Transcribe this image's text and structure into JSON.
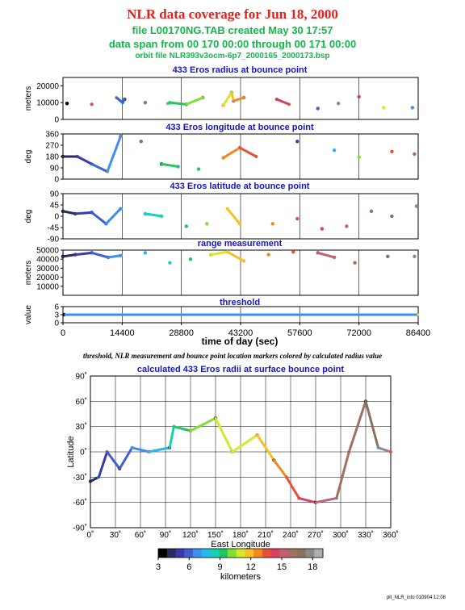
{
  "header": {
    "title": "NLR data coverage for Jun 18, 2000",
    "file_line": "file L00170NG.TAB created May 30 17:57",
    "span_line": "data span from 00 170 00:00 through 00 171 00:00",
    "orbit_line": "orbit file NLR393v3ocm-6p7_2000165_2000173.bsp"
  },
  "caption": "threshold, NLR measurement and bounce point location markers colored by calculated radius value",
  "footer": "plt_NLR_info 010904 12:08",
  "colors": {
    "panel_title": "#1616c8",
    "header_red": "#e8201b",
    "header_green": "#11b84a"
  },
  "chart_data": [
    {
      "type": "scatter",
      "title": "433 Eros radius at bounce point",
      "ylabel": "meters",
      "xlim": [
        0,
        86400
      ],
      "ylim": [
        0,
        25000
      ],
      "yticks": [
        "0",
        "10000",
        "20000"
      ],
      "series": [
        {
          "x": [
            1000,
            7000,
            13000,
            14500,
            15000,
            20000,
            25500,
            26000,
            30000,
            34000,
            39000,
            41000,
            41500,
            44000,
            52000,
            55000,
            62000,
            67000,
            72000,
            78000,
            85000
          ],
          "y": [
            9500,
            9000,
            13000,
            10000,
            12000,
            10000,
            9500,
            10000,
            9000,
            13000,
            8500,
            16000,
            11000,
            13000,
            12000,
            9000,
            6500,
            9500,
            13500,
            7000,
            7000
          ]
        }
      ]
    },
    {
      "type": "scatter",
      "title": "433 Eros longitude at bounce point",
      "ylabel": "deg",
      "xlim": [
        0,
        86400
      ],
      "ylim": [
        0,
        360
      ],
      "yticks": [
        "0",
        "90",
        "180",
        "270",
        "360"
      ],
      "series": [
        {
          "x": [
            0,
            3500,
            7000,
            10800,
            14000,
            19000,
            24000,
            28000,
            33000,
            39000,
            43000,
            47000,
            57000,
            66000,
            72000,
            80000,
            85500
          ],
          "y": [
            180,
            180,
            120,
            60,
            340,
            300,
            120,
            100,
            80,
            170,
            250,
            180,
            300,
            230,
            175,
            220,
            200
          ]
        }
      ]
    },
    {
      "type": "scatter",
      "title": "433 Eros latitude at bounce point",
      "ylabel": "deg",
      "xlim": [
        0,
        86400
      ],
      "ylim": [
        -90,
        90
      ],
      "yticks": [
        "-90",
        "-45",
        "0",
        "45",
        "90"
      ],
      "series": [
        {
          "x": [
            0,
            3000,
            7000,
            10500,
            14000,
            20000,
            24000,
            30000,
            35000,
            40000,
            43000,
            51000,
            57000,
            63000,
            69000,
            75000,
            80000,
            86000
          ],
          "y": [
            20,
            10,
            15,
            -30,
            30,
            10,
            0,
            -40,
            -30,
            30,
            -30,
            -30,
            -10,
            -50,
            -40,
            20,
            0,
            40
          ]
        }
      ]
    },
    {
      "type": "scatter",
      "title": "range measurement",
      "ylabel": "meters",
      "xlim": [
        0,
        86400
      ],
      "ylim": [
        0,
        50000
      ],
      "yticks": [
        "10000",
        "20000",
        "30000",
        "40000",
        "50000"
      ],
      "series": [
        {
          "x": [
            0,
            3000,
            7000,
            11000,
            14000,
            20000,
            26000,
            31000,
            36000,
            40000,
            44000,
            50000,
            56000,
            62000,
            66000,
            71000,
            79000,
            85500
          ],
          "y": [
            43000,
            45000,
            47000,
            42000,
            44000,
            47000,
            36000,
            40000,
            45000,
            48000,
            38000,
            45000,
            48000,
            47000,
            42000,
            36000,
            43000,
            43000
          ]
        }
      ]
    },
    {
      "type": "scatter",
      "title": "threshold",
      "ylabel": "value",
      "xlabel": "time of day (sec)",
      "xlim": [
        0,
        86400
      ],
      "ylim": [
        0,
        6
      ],
      "yticks": [
        "0",
        "3",
        "6"
      ],
      "xticks": [
        "0",
        "14400",
        "28800",
        "43200",
        "57600",
        "72000",
        "86400"
      ],
      "series": [
        {
          "x": [
            300,
            86100
          ],
          "y": [
            3,
            3
          ]
        }
      ]
    },
    {
      "type": "scatter",
      "title": "calculated 433 Eros radii at surface bounce point",
      "xlabel": "East Longitude",
      "ylabel": "Latitude",
      "xlim": [
        0,
        360
      ],
      "ylim": [
        -90,
        90
      ],
      "xticks": [
        "0˚",
        "30˚",
        "60˚",
        "90˚",
        "120˚",
        "150˚",
        "180˚",
        "210˚",
        "240˚",
        "270˚",
        "300˚",
        "330˚",
        "360˚"
      ],
      "yticks": [
        "-90˚",
        "-60˚",
        "-30˚",
        "0˚",
        "30˚",
        "60˚",
        "90˚"
      ],
      "series": [
        {
          "x": [
            0,
            10,
            20,
            35,
            50,
            70,
            95,
            100,
            120,
            150,
            170,
            200,
            220,
            235,
            250,
            270,
            295,
            310,
            330,
            345,
            360
          ],
          "y": [
            -35,
            -30,
            0,
            -20,
            5,
            0,
            5,
            30,
            25,
            40,
            0,
            20,
            -10,
            -30,
            -55,
            -60,
            -55,
            0,
            60,
            5,
            0
          ]
        }
      ],
      "colorbar": {
        "label": "kilometers",
        "ticks": [
          "3",
          "6",
          "9",
          "12",
          "15",
          "18"
        ],
        "range": [
          3,
          19
        ]
      }
    }
  ]
}
